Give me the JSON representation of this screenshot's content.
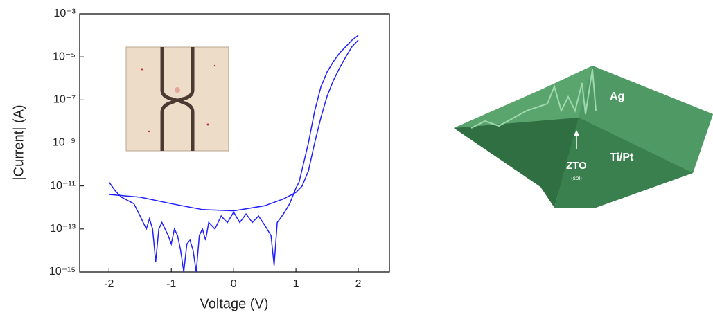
{
  "chart_data": {
    "type": "line",
    "xlabel": "Voltage (V)",
    "ylabel": "|Current| (A)",
    "log_y": true,
    "xlim": [
      -2.47,
      2.5
    ],
    "xticks": [
      -2,
      -1,
      0,
      1,
      2
    ],
    "ylim": [
      1e-15,
      0.001
    ],
    "yticks": [
      {
        "value": 1e-15,
        "label": "10⁻¹⁵"
      },
      {
        "value": 1e-13,
        "label": "10⁻¹³"
      },
      {
        "value": 1e-11,
        "label": "10⁻¹¹"
      },
      {
        "value": 1e-09,
        "label": "10⁻⁹"
      },
      {
        "value": 1e-07,
        "label": "10⁻⁷"
      },
      {
        "value": 1e-05,
        "label": "10⁻⁵"
      },
      {
        "value": 0.001,
        "label": "10⁻³"
      }
    ],
    "series": [
      {
        "color": "#1f1fff",
        "x": [
          2,
          1.9,
          1.8,
          1.7,
          1.6,
          1.5,
          1.4,
          1.3,
          1.2,
          1.1,
          1.0,
          0.8,
          0.5,
          0,
          -0.5,
          -1,
          -1.5,
          -2
        ],
        "values": [
          6e-05,
          3e-05,
          1e-05,
          3e-06,
          8e-07,
          1.5e-07,
          1.5e-08,
          1e-09,
          5e-11,
          1e-11,
          5e-12,
          2.5e-12,
          1.2e-12,
          7e-13,
          8e-13,
          1.5e-12,
          3e-12,
          4e-12
        ]
      },
      {
        "color": "#1f1fff",
        "x": [
          -2,
          -1.9,
          -1.8,
          -1.6,
          -1.5,
          -1.45,
          -1.4,
          -1.35,
          -1.3,
          -1.25,
          -1.2,
          -1.15,
          -1.1,
          -1.05,
          -1,
          -0.95,
          -0.9,
          -0.85,
          -0.8,
          -0.75,
          -0.7,
          -0.65,
          -0.6,
          -0.55,
          -0.5,
          -0.45,
          -0.4,
          -0.3,
          -0.2,
          -0.1,
          0,
          0.1,
          0.2,
          0.3,
          0.4,
          0.5,
          0.6,
          0.65,
          0.7,
          0.8,
          0.9,
          1.0,
          1.05,
          1.1,
          1.2,
          1.3,
          1.4,
          1.5,
          1.6,
          1.7,
          1.8,
          1.9,
          2
        ],
        "values": [
          1.5e-11,
          6e-12,
          3e-12,
          1.5e-12,
          4e-13,
          2e-13,
          1e-13,
          3e-13,
          1e-13,
          3e-15,
          1e-13,
          2e-13,
          1e-13,
          5e-14,
          2e-14,
          1e-13,
          5e-14,
          1e-14,
          1e-15,
          2e-14,
          3e-14,
          1e-14,
          1e-15,
          5e-14,
          1e-13,
          3e-14,
          2e-13,
          1e-13,
          4e-13,
          2e-13,
          6e-13,
          2e-13,
          5e-13,
          2e-13,
          4e-13,
          1.5e-13,
          5e-14,
          2e-15,
          2e-13,
          5e-13,
          1.5e-12,
          8e-12,
          1.5e-11,
          6e-11,
          1e-09,
          3e-08,
          4e-07,
          2e-06,
          6e-06,
          1.5e-05,
          3e-05,
          6e-05,
          0.0001
        ]
      }
    ]
  },
  "render": {
    "labels": [
      "Ag",
      "Ti/Pt",
      "ZTO",
      "(sol)"
    ]
  }
}
